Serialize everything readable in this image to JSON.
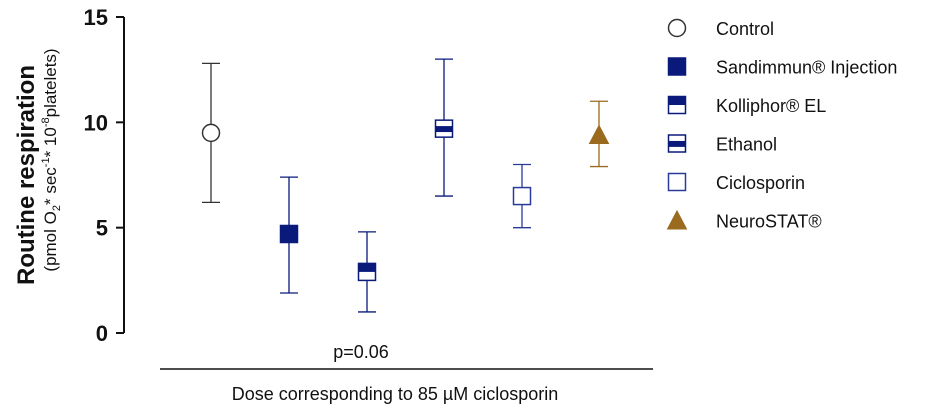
{
  "chart_data": {
    "type": "scatter",
    "title": "",
    "ylabel": "Routine respiration",
    "ylabel_units_parts": [
      "(pmol O",
      "2",
      "* sec",
      "-1",
      "* 10",
      "-8",
      "platelets)"
    ],
    "xlabel": "Dose corresponding to 85 µM ciclosporin",
    "ylim": [
      0,
      15
    ],
    "yticks": [
      0,
      5,
      10,
      15
    ],
    "annotation": "p=0.06",
    "legend_position": "right",
    "grid": false,
    "series": [
      {
        "name": "Control",
        "marker": "circle-open",
        "color": "#333333",
        "mean": 9.5,
        "err_low": 6.2,
        "err_high": 12.8
      },
      {
        "name": "Sandimmun® Injection",
        "marker": "square-filled",
        "color": "#0a1a7a",
        "mean": 4.7,
        "err_low": 1.9,
        "err_high": 7.4
      },
      {
        "name": "Kolliphor® EL",
        "marker": "square-top-filled",
        "color": "#0a1a7a",
        "mean": 2.9,
        "err_low": 1.0,
        "err_high": 4.8
      },
      {
        "name": "Ethanol",
        "marker": "square-middle-band",
        "color": "#0a1a7a",
        "mean": 9.7,
        "err_low": 6.5,
        "err_high": 13.0
      },
      {
        "name": "Ciclosporin",
        "marker": "square-open",
        "color": "#2a3a9a",
        "mean": 6.5,
        "err_low": 5.0,
        "err_high": 8.0
      },
      {
        "name": "NeuroSTAT®",
        "marker": "triangle-filled",
        "color": "#9a6a1e",
        "mean": 9.4,
        "err_low": 7.9,
        "err_high": 11.0
      }
    ]
  }
}
